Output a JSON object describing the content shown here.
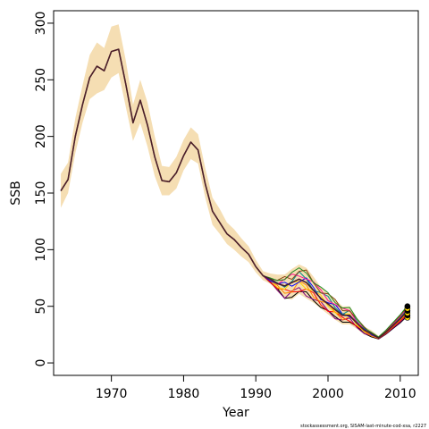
{
  "chart_data": {
    "type": "line",
    "xlabel": "Year",
    "ylabel": "SSB",
    "xlim": [
      1962,
      2012.5
    ],
    "ylim": [
      -11,
      311
    ],
    "x_ticks": [
      1970,
      1980,
      1990,
      2000,
      2010
    ],
    "y_ticks": [
      0,
      50,
      100,
      150,
      200,
      250,
      300
    ],
    "x": [
      1963,
      1964,
      1965,
      1966,
      1967,
      1968,
      1969,
      1970,
      1971,
      1972,
      1973,
      1974,
      1975,
      1976,
      1977,
      1978,
      1979,
      1980,
      1981,
      1982,
      1983,
      1984,
      1985,
      1986,
      1987,
      1988,
      1989,
      1990,
      1991,
      1992,
      1993,
      1994,
      1995,
      1996,
      1997,
      1998,
      1999,
      2000,
      2001,
      2002,
      2003,
      2004,
      2005,
      2006,
      2007,
      2008,
      2009,
      2010,
      2011
    ],
    "estimate": [
      152,
      162,
      200,
      228,
      252,
      262,
      258,
      275,
      277,
      246,
      212,
      232,
      210,
      182,
      161,
      160,
      168,
      183,
      195,
      188,
      158,
      134,
      124,
      114,
      109,
      102,
      96,
      85,
      77,
      74,
      70,
      68,
      71,
      74,
      71,
      64,
      57,
      52,
      47,
      42,
      42,
      35,
      29,
      26,
      22,
      27,
      33,
      39,
      46
    ],
    "ci_lower": [
      137,
      150,
      185,
      212,
      233,
      238,
      241,
      252,
      256,
      226,
      196,
      212,
      191,
      165,
      148,
      148,
      154,
      170,
      180,
      176,
      146,
      122,
      114,
      105,
      100,
      94,
      89,
      80,
      73,
      70,
      63,
      57,
      56,
      61,
      57,
      53,
      48,
      43,
      38,
      34,
      34,
      30,
      25,
      23,
      22,
      26,
      31,
      37,
      41
    ],
    "ci_upper": [
      167,
      177,
      216,
      245,
      272,
      283,
      278,
      297,
      299,
      267,
      228,
      250,
      230,
      200,
      174,
      173,
      182,
      197,
      208,
      202,
      172,
      146,
      136,
      124,
      118,
      110,
      103,
      91,
      81,
      79,
      78,
      78,
      83,
      87,
      84,
      76,
      67,
      61,
      56,
      50,
      50,
      40,
      32,
      29,
      24,
      29,
      36,
      42,
      51
    ],
    "retro_spread_x": [
      1992,
      1993,
      1994,
      1995,
      1996,
      1997,
      1998,
      1999,
      2000,
      2001,
      2002,
      2003,
      2004,
      2005,
      2006
    ],
    "retro_spread_lo": [
      71,
      64,
      57,
      58,
      62,
      59,
      55,
      49,
      44,
      39,
      36,
      36,
      31,
      26,
      23
    ],
    "retro_spread_hi": [
      75,
      73,
      77,
      80,
      84,
      82,
      73,
      67,
      62,
      56,
      49,
      49,
      39,
      32,
      27
    ],
    "terminal_points": [
      40,
      42,
      44,
      46,
      48,
      50
    ],
    "colors": {
      "ci_band": "#F5DEB3",
      "estimate": "#4B1F2A",
      "retro_series": [
        "#000000",
        "#800080",
        "#FF0000",
        "#FF8C00",
        "#FFD700",
        "#0000FF",
        "#008B8B",
        "#FF1493",
        "#8B4513",
        "#228B22"
      ],
      "terminal_point": "#FFD700"
    },
    "credit": "stockassessment.org, SISAM-last-minute-cod-xsa, r2227"
  }
}
